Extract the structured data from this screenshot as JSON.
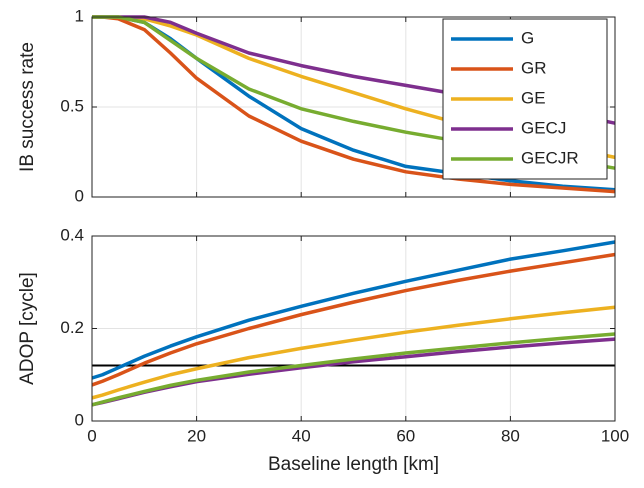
{
  "chart_data": [
    {
      "type": "line",
      "ylabel": "IB success rate",
      "x": [
        0,
        2,
        5,
        10,
        15,
        20,
        30,
        40,
        50,
        60,
        70,
        80,
        90,
        100
      ],
      "xlim": [
        0,
        100
      ],
      "ylim": [
        0,
        1
      ],
      "yticks": [
        0,
        0.5,
        1
      ],
      "grid": true,
      "legend": "top-right",
      "series": [
        {
          "name": "G",
          "color": "#0072bd",
          "values": [
            1,
            1,
            1,
            0.97,
            0.88,
            0.77,
            0.56,
            0.38,
            0.26,
            0.17,
            0.13,
            0.09,
            0.06,
            0.04
          ]
        },
        {
          "name": "GR",
          "color": "#d95319",
          "values": [
            1,
            1,
            0.99,
            0.93,
            0.8,
            0.66,
            0.45,
            0.31,
            0.21,
            0.14,
            0.1,
            0.07,
            0.05,
            0.03
          ]
        },
        {
          "name": "GE",
          "color": "#edb120",
          "values": [
            1,
            1,
            1,
            0.99,
            0.95,
            0.9,
            0.77,
            0.67,
            0.58,
            0.49,
            0.41,
            0.34,
            0.28,
            0.22
          ]
        },
        {
          "name": "GECJ",
          "color": "#7e2f8e",
          "values": [
            1,
            1,
            1,
            1,
            0.97,
            0.91,
            0.8,
            0.73,
            0.67,
            0.62,
            0.57,
            0.52,
            0.47,
            0.41
          ]
        },
        {
          "name": "GECJR",
          "color": "#77ac30",
          "values": [
            1,
            1,
            1,
            0.97,
            0.87,
            0.77,
            0.6,
            0.49,
            0.42,
            0.36,
            0.31,
            0.26,
            0.21,
            0.16
          ]
        }
      ]
    },
    {
      "type": "line",
      "ylabel": "ADOP [cycle]",
      "xlabel": "Baseline length [km]",
      "x": [
        0,
        2,
        5,
        10,
        15,
        20,
        30,
        40,
        50,
        60,
        70,
        80,
        90,
        100
      ],
      "xlim": [
        0,
        100
      ],
      "xticks": [
        0,
        20,
        40,
        60,
        80,
        100
      ],
      "ylim": [
        0,
        0.4
      ],
      "yticks": [
        0,
        0.2,
        0.4
      ],
      "grid": true,
      "hline": {
        "value": 0.12,
        "color": "#000000"
      },
      "series": [
        {
          "color": "#0072bd",
          "values": [
            0.093,
            0.1,
            0.115,
            0.14,
            0.162,
            0.182,
            0.218,
            0.248,
            0.276,
            0.302,
            0.326,
            0.35,
            0.368,
            0.387
          ]
        },
        {
          "color": "#d95319",
          "values": [
            0.078,
            0.086,
            0.1,
            0.125,
            0.147,
            0.167,
            0.2,
            0.23,
            0.257,
            0.282,
            0.304,
            0.324,
            0.342,
            0.36
          ]
        },
        {
          "color": "#edb120",
          "values": [
            0.05,
            0.056,
            0.067,
            0.084,
            0.1,
            0.113,
            0.137,
            0.157,
            0.175,
            0.192,
            0.207,
            0.221,
            0.234,
            0.246
          ]
        },
        {
          "color": "#7e2f8e",
          "values": [
            0.035,
            0.04,
            0.048,
            0.062,
            0.074,
            0.085,
            0.101,
            0.115,
            0.128,
            0.139,
            0.15,
            0.16,
            0.169,
            0.177
          ]
        },
        {
          "color": "#77ac30",
          "values": [
            0.035,
            0.041,
            0.05,
            0.064,
            0.077,
            0.088,
            0.106,
            0.12,
            0.134,
            0.147,
            0.158,
            0.169,
            0.179,
            0.188
          ]
        }
      ]
    }
  ]
}
